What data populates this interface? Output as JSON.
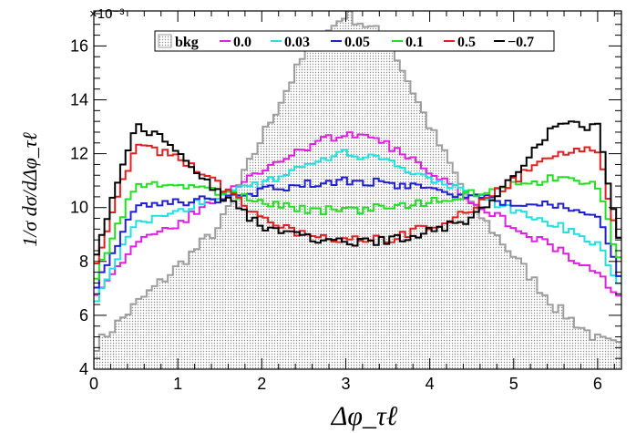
{
  "chart_data": {
    "type": "line",
    "style": "step-histogram",
    "xlabel": "Δφ_τℓ",
    "ylabel": "1/σ dσ/dΔφ_τℓ",
    "exponent_label": "×10⁻³",
    "xlim": [
      0,
      6.2832
    ],
    "ylim": [
      4,
      17.3
    ],
    "x_ticks": [
      0,
      1,
      2,
      3,
      4,
      5,
      6
    ],
    "y_ticks": [
      4,
      6,
      8,
      10,
      12,
      14,
      16
    ],
    "grid": false,
    "legend_position": "top",
    "legend_entries": [
      "bkg",
      "0.0",
      "0.03",
      "0.05",
      "0.1",
      "0.5",
      "−0.7"
    ],
    "series": [
      {
        "name": "bkg",
        "color": "#9e9e9e",
        "filled": true,
        "x": [
          0.0,
          0.5,
          1.0,
          1.5,
          2.0,
          2.5,
          3.0,
          3.5,
          4.0,
          4.5,
          5.0,
          5.5,
          6.0,
          6.283
        ],
        "values": [
          4.8,
          6.4,
          7.8,
          9.3,
          12.6,
          15.6,
          17.2,
          16.3,
          13.0,
          10.1,
          8.2,
          6.3,
          5.1,
          4.8
        ]
      },
      {
        "name": "0.0",
        "color": "#e020e0",
        "x": [
          0.0,
          0.5,
          1.0,
          1.5,
          2.0,
          2.5,
          3.0,
          3.5,
          4.0,
          4.5,
          5.0,
          5.5,
          6.0,
          6.283
        ],
        "values": [
          6.8,
          8.6,
          9.4,
          10.4,
          11.4,
          12.2,
          12.8,
          12.3,
          11.4,
          10.3,
          9.3,
          8.5,
          7.5,
          6.7
        ]
      },
      {
        "name": "0.03",
        "color": "#20e0e0",
        "x": [
          0.0,
          0.5,
          1.0,
          1.5,
          2.0,
          2.5,
          3.0,
          3.5,
          4.0,
          4.5,
          5.0,
          5.5,
          6.0,
          6.283
        ],
        "values": [
          6.5,
          9.4,
          9.9,
          10.4,
          10.9,
          11.6,
          12.0,
          11.7,
          11.0,
          10.5,
          9.9,
          9.4,
          8.7,
          6.9
        ]
      },
      {
        "name": "0.05",
        "color": "#2020d0",
        "x": [
          0.0,
          0.5,
          1.0,
          1.5,
          2.0,
          2.5,
          3.0,
          3.5,
          4.0,
          4.5,
          5.0,
          5.5,
          6.0,
          6.283
        ],
        "values": [
          7.0,
          10.0,
          10.2,
          10.3,
          10.6,
          10.9,
          11.0,
          10.9,
          10.7,
          10.4,
          10.2,
          10.1,
          9.7,
          7.3
        ]
      },
      {
        "name": "0.1",
        "color": "#20e020",
        "x": [
          0.0,
          0.5,
          1.0,
          1.5,
          2.0,
          2.5,
          3.0,
          3.5,
          4.0,
          4.5,
          5.0,
          5.5,
          6.0,
          6.283
        ],
        "values": [
          7.3,
          10.8,
          10.9,
          10.6,
          10.2,
          9.9,
          9.9,
          10.0,
          10.2,
          10.5,
          10.8,
          11.1,
          10.8,
          7.8
        ]
      },
      {
        "name": "0.5",
        "color": "#e02020",
        "x": [
          0.0,
          0.5,
          1.0,
          1.5,
          2.0,
          2.5,
          3.0,
          3.5,
          4.0,
          4.5,
          5.0,
          5.5,
          6.0,
          6.283
        ],
        "values": [
          7.8,
          12.3,
          11.9,
          10.8,
          9.6,
          9.0,
          8.8,
          8.8,
          9.3,
          9.9,
          11.0,
          12.0,
          12.2,
          8.3
        ]
      },
      {
        "name": "−0.7",
        "color": "#000000",
        "x": [
          0.0,
          0.5,
          1.0,
          1.5,
          2.0,
          2.5,
          3.0,
          3.5,
          4.0,
          4.5,
          5.0,
          5.5,
          6.0,
          6.283
        ],
        "values": [
          8.1,
          13.1,
          12.2,
          10.5,
          9.3,
          8.9,
          8.7,
          8.8,
          9.1,
          9.6,
          11.1,
          13.1,
          13.0,
          8.4
        ]
      }
    ]
  }
}
